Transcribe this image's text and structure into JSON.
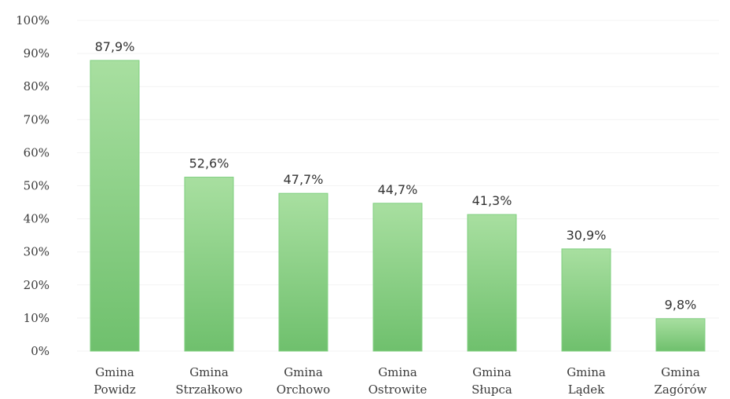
{
  "chart_data": {
    "type": "bar",
    "categories": [
      [
        "Gmina",
        "Powidz"
      ],
      [
        "Gmina",
        "Strzałkowo"
      ],
      [
        "Gmina",
        "Orchowo"
      ],
      [
        "Gmina",
        "Ostrowite"
      ],
      [
        "Gmina",
        "Słupca"
      ],
      [
        "Gmina",
        "Lądek"
      ],
      [
        "Gmina",
        "Zagórów"
      ]
    ],
    "values": [
      87.9,
      52.6,
      47.7,
      44.7,
      41.3,
      30.9,
      9.8
    ],
    "data_labels": [
      "87,9%",
      "52,6%",
      "47,7%",
      "44,7%",
      "41,3%",
      "30,9%",
      "9,8%"
    ],
    "ylim": [
      0,
      100
    ],
    "yticks": [
      "0%",
      "10%",
      "20%",
      "30%",
      "40%",
      "50%",
      "60%",
      "70%",
      "80%",
      "90%",
      "100%"
    ],
    "grid": true,
    "legend": "none",
    "title": "",
    "xlabel": "",
    "ylabel": "",
    "colors": {
      "bar_top": "#a8dfa0",
      "bar_bottom": "#6fc06d",
      "bar_border": "#7fcf7f",
      "grid": "#f3f3f3",
      "text": "#3a3a3a"
    }
  }
}
